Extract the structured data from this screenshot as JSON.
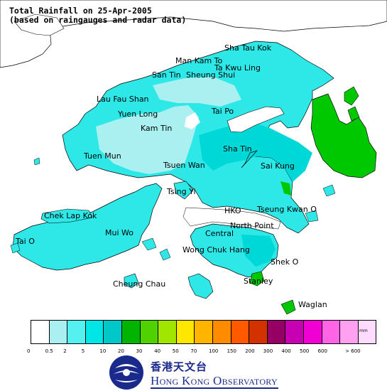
{
  "title": {
    "line1": "Total Rainfall on 25-Apr-2005",
    "line2": "(based on raingauges and radar data)"
  },
  "places": [
    {
      "name": "Sha Tau Kok",
      "id": "sha-tau-kok"
    },
    {
      "name": "Man Kam To",
      "id": "man-kam-to"
    },
    {
      "name": "Ta Kwu Ling",
      "id": "ta-kwu-ling"
    },
    {
      "name": "San Tin",
      "id": "san-tin"
    },
    {
      "name": "Sheung Shui",
      "id": "sheung-shui"
    },
    {
      "name": "Lau Fau Shan",
      "id": "lau-fau-shan"
    },
    {
      "name": "Yuen Long",
      "id": "yuen-long"
    },
    {
      "name": "Tai Po",
      "id": "tai-po"
    },
    {
      "name": "Kam Tin",
      "id": "kam-tin"
    },
    {
      "name": "Sha Tin",
      "id": "sha-tin"
    },
    {
      "name": "Tuen Mun",
      "id": "tuen-mun"
    },
    {
      "name": "Tsuen Wan",
      "id": "tsuen-wan"
    },
    {
      "name": "Sai Kung",
      "id": "sai-kung"
    },
    {
      "name": "Tsing Yi",
      "id": "tsing-yi"
    },
    {
      "name": "Chek Lap Kok",
      "id": "chek-lap-kok"
    },
    {
      "name": "HKO",
      "id": "hko"
    },
    {
      "name": "Tseung Kwan O",
      "id": "tseung-kwan-o"
    },
    {
      "name": "Mui Wo",
      "id": "mui-wo"
    },
    {
      "name": "North Point",
      "id": "north-point"
    },
    {
      "name": "Central",
      "id": "central"
    },
    {
      "name": "Tai O",
      "id": "tai-o"
    },
    {
      "name": "Wong Chuk Hang",
      "id": "wong-chuk-hang"
    },
    {
      "name": "Shek O",
      "id": "shek-o"
    },
    {
      "name": "Cheung Chau",
      "id": "cheung-chau"
    },
    {
      "name": "Stanley",
      "id": "stanley"
    },
    {
      "name": "Waglan",
      "id": "waglan"
    }
  ],
  "legend": {
    "unit": "mm",
    "ticks": [
      "0",
      "0.5",
      "2",
      "5",
      "10",
      "20",
      "30",
      "40",
      "50",
      "70",
      "100",
      "150",
      "200",
      "300",
      "400",
      "500",
      "600",
      "> 600"
    ],
    "colors": [
      "#ffffff",
      "#aaf0f0",
      "#55f0f0",
      "#00e6e6",
      "#00c8c8",
      "#00b400",
      "#50d200",
      "#a0e600",
      "#ffe600",
      "#ffb400",
      "#ff8c00",
      "#ff5a00",
      "#d23200",
      "#960064",
      "#c800b4",
      "#f000d2",
      "#ff64e6",
      "#ffa0f0",
      "#ffdcff"
    ]
  },
  "logo": {
    "chinese": "香港天文台",
    "english": "Hong Kong Observatory"
  }
}
